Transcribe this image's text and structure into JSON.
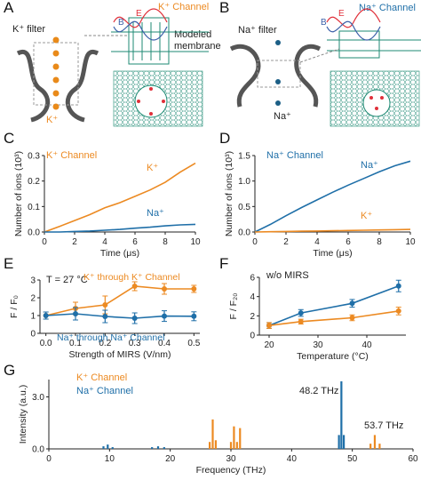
{
  "panels": {
    "A": {
      "letter": "A",
      "filter_label": "K⁺ filter",
      "channel_label": "K⁺ Channel",
      "ion_label": "K⁺",
      "membrane_label_1": "Modeled",
      "membrane_label_2": "membrane",
      "wave_labels": [
        "B",
        "E"
      ]
    },
    "B": {
      "letter": "B",
      "filter_label": "Na⁺ filter",
      "channel_label": "Na⁺ Channel",
      "ion_label": "Na⁺",
      "wave_labels": [
        "B",
        "E"
      ]
    },
    "C": {
      "letter": "C"
    },
    "D": {
      "letter": "D"
    },
    "E": {
      "letter": "E",
      "annotation": "T = 27 °C"
    },
    "F": {
      "letter": "F",
      "annotation": "w/o MIRS"
    },
    "G": {
      "letter": "G",
      "peak_label_1": "48.2 THz",
      "peak_label_2": "53.7 THz"
    }
  },
  "colors": {
    "orange": "#ec8a22",
    "blue": "#1f6fa8",
    "membrane": "#1d8a73",
    "ion_k": "#e98a1a",
    "ion_na": "#1c5f86"
  },
  "chart_data": [
    {
      "id": "C",
      "type": "line",
      "xlabel": "Time (μs)",
      "ylabel": "Number of ions (10³)",
      "xlim": [
        0,
        10
      ],
      "ylim": [
        0,
        0.3
      ],
      "xticks": [
        "0",
        "2",
        "4",
        "6",
        "8",
        "10"
      ],
      "yticks": [
        "0.0",
        "0.1",
        "0.2",
        "0.3"
      ],
      "legend_title": "K⁺ Channel",
      "series": [
        {
          "name": "K⁺",
          "color": "#ec8a22",
          "x": [
            0,
            1,
            2,
            3,
            4,
            5,
            6,
            7,
            8,
            9,
            10
          ],
          "values": [
            0,
            0.022,
            0.045,
            0.068,
            0.095,
            0.115,
            0.14,
            0.165,
            0.195,
            0.235,
            0.27
          ]
        },
        {
          "name": "Na⁺",
          "color": "#1f6fa8",
          "x": [
            0,
            1,
            2,
            3,
            4,
            5,
            6,
            7,
            8,
            9,
            10
          ],
          "values": [
            0,
            0.0,
            0.002,
            0.004,
            0.007,
            0.01,
            0.015,
            0.019,
            0.024,
            0.028,
            0.03
          ]
        }
      ]
    },
    {
      "id": "D",
      "type": "line",
      "xlabel": "Time (μs)",
      "ylabel": "Number of ions (10³)",
      "xlim": [
        0,
        10
      ],
      "ylim": [
        0,
        1.5
      ],
      "xticks": [
        "0",
        "2",
        "4",
        "6",
        "8",
        "10"
      ],
      "yticks": [
        "0.0",
        "0.5",
        "1.0",
        "1.5"
      ],
      "legend_title": "Na⁺ Channel",
      "series": [
        {
          "name": "Na⁺",
          "color": "#1f6fa8",
          "x": [
            0,
            1,
            2,
            3,
            4,
            5,
            6,
            7,
            8,
            9,
            10
          ],
          "values": [
            0,
            0.15,
            0.32,
            0.48,
            0.63,
            0.78,
            0.92,
            1.05,
            1.18,
            1.3,
            1.39
          ]
        },
        {
          "name": "K⁺",
          "color": "#ec8a22",
          "x": [
            0,
            1,
            2,
            3,
            4,
            5,
            6,
            7,
            8,
            9,
            10
          ],
          "values": [
            0,
            0.005,
            0.01,
            0.015,
            0.02,
            0.025,
            0.03,
            0.035,
            0.04,
            0.045,
            0.05
          ]
        }
      ]
    },
    {
      "id": "E",
      "type": "line",
      "xlabel": "Strength of MIRS (V/nm)",
      "ylabel": "F / F₀",
      "xlim": [
        -0.02,
        0.52
      ],
      "ylim": [
        0,
        3
      ],
      "xticks": [
        "0.0",
        "0.1",
        "0.2",
        "0.3",
        "0.4",
        "0.5"
      ],
      "yticks": [
        "0",
        "1",
        "2",
        "3"
      ],
      "series": [
        {
          "name": "K⁺ through K⁺ Channel",
          "color": "#ec8a22",
          "x": [
            0,
            0.1,
            0.2,
            0.3,
            0.4,
            0.5
          ],
          "values": [
            1.0,
            1.4,
            1.6,
            2.65,
            2.5,
            2.5
          ],
          "err": [
            0.2,
            0.35,
            0.5,
            0.25,
            0.3,
            0.2
          ]
        },
        {
          "name": "Na⁺ through Na⁺ Channel",
          "color": "#1f6fa8",
          "x": [
            0,
            0.1,
            0.2,
            0.3,
            0.4,
            0.5
          ],
          "values": [
            1.0,
            1.1,
            0.95,
            0.85,
            0.97,
            0.96
          ],
          "err": [
            0.2,
            0.35,
            0.35,
            0.3,
            0.3,
            0.25
          ]
        }
      ]
    },
    {
      "id": "F",
      "type": "line",
      "xlabel": "Temperature (°C)",
      "ylabel": "F / F₂₀",
      "xlim": [
        18,
        48
      ],
      "ylim": [
        0,
        6
      ],
      "xticks": [
        "20",
        "30",
        "40"
      ],
      "xtick_values": [
        20,
        30,
        40
      ],
      "yticks": [
        "0",
        "2",
        "4",
        "6"
      ],
      "series": [
        {
          "name": "Na⁺",
          "color": "#1f6fa8",
          "x": [
            20,
            26.5,
            37,
            46.5
          ],
          "values": [
            1.0,
            2.3,
            3.3,
            5.1
          ],
          "err": [
            0.3,
            0.35,
            0.4,
            0.6
          ]
        },
        {
          "name": "K⁺",
          "color": "#ec8a22",
          "x": [
            20,
            26.5,
            37,
            46.5
          ],
          "values": [
            1.0,
            1.4,
            1.8,
            2.5
          ],
          "err": [
            0.3,
            0.25,
            0.3,
            0.4
          ]
        }
      ]
    },
    {
      "id": "G",
      "type": "line",
      "xlabel": "Frequency (THz)",
      "ylabel": "Intensity (a.u.)",
      "xlim": [
        0,
        60
      ],
      "ylim": [
        0,
        4
      ],
      "xticks": [
        "0",
        "10",
        "20",
        "30",
        "40",
        "50",
        "60"
      ],
      "yticks": [
        "0.0",
        "3.0"
      ],
      "series": [
        {
          "name": "K⁺ Channel",
          "color": "#ec8a22",
          "x": [
            26.5,
            27,
            27.5,
            30,
            30.5,
            31,
            31.5,
            53,
            53.7,
            54.5
          ],
          "values": [
            0.4,
            1.7,
            0.5,
            0.4,
            1.3,
            0.4,
            1.2,
            0.3,
            0.8,
            0.3
          ]
        },
        {
          "name": "Na⁺ Channel",
          "color": "#1f6fa8",
          "x": [
            9,
            9.7,
            10.5,
            17,
            18,
            19,
            47.8,
            48.2,
            48.6
          ],
          "values": [
            0.15,
            0.25,
            0.1,
            0.1,
            0.15,
            0.1,
            0.8,
            3.9,
            0.8
          ]
        }
      ]
    }
  ]
}
